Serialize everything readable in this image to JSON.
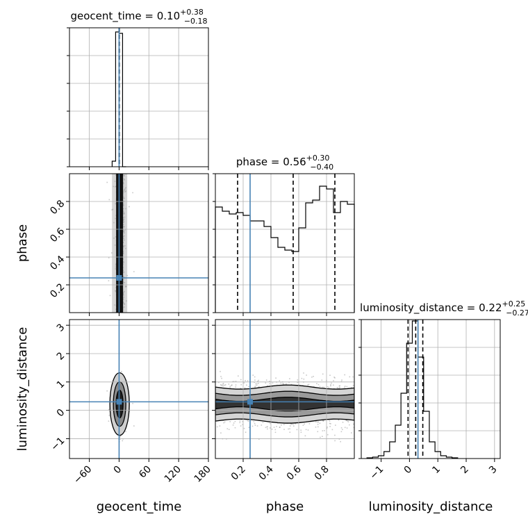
{
  "chart_data": {
    "type": "corner",
    "parameters": [
      "geocent_time",
      "phase",
      "luminosity_distance"
    ],
    "truth": {
      "geocent_time": 0,
      "phase": 0.25,
      "luminosity_distance": 0.3
    },
    "truth_color": "#4682b4",
    "axes": {
      "geocent_time": {
        "range": [
          -100,
          180
        ],
        "ticks": [
          -60,
          0,
          60,
          120,
          180
        ],
        "tick_labels": [
          "−60",
          "0",
          "60",
          "120",
          "180"
        ]
      },
      "phase": {
        "range": [
          0.0,
          1.0
        ],
        "ticks": [
          0.2,
          0.4,
          0.6,
          0.8
        ],
        "tick_labels": [
          "0.2",
          "0.4",
          "0.6",
          "0.8"
        ]
      },
      "luminosity_distance": {
        "range": [
          -1.7,
          3.2
        ],
        "ticks": [
          -1,
          0,
          1,
          2,
          3
        ],
        "tick_labels": [
          "−1",
          "0",
          "1",
          "2",
          "3"
        ]
      }
    },
    "titles": [
      {
        "param": "geocent_time",
        "prefix": "geocent_time = ",
        "median": "0.10",
        "plus": "+0.38",
        "minus": "−0.18"
      },
      {
        "param": "phase",
        "prefix": "phase = ",
        "median": "0.56",
        "plus": "+0.30",
        "minus": "−0.40"
      },
      {
        "param": "luminosity_distance",
        "prefix": "luminosity_distance = ",
        "median": "0.22",
        "plus": "+0.25",
        "minus": "−0.27"
      }
    ],
    "quantiles": {
      "geocent_time": [
        -0.08,
        0.1,
        0.48
      ],
      "phase": [
        0.16,
        0.56,
        0.86
      ],
      "luminosity_distance": [
        -0.05,
        0.22,
        0.47
      ]
    },
    "histograms": {
      "geocent_time": {
        "edges": [
          -14,
          -7,
          0,
          7,
          14
        ],
        "counts": [
          0.04,
          0.97,
          0.96,
          0
        ]
      },
      "phase": {
        "edges": [
          0.0,
          0.05,
          0.1,
          0.15,
          0.2,
          0.25,
          0.3,
          0.35,
          0.4,
          0.45,
          0.5,
          0.55,
          0.6,
          0.65,
          0.7,
          0.75,
          0.8,
          0.85,
          0.9,
          0.95,
          1.0
        ],
        "counts": [
          0.76,
          0.73,
          0.71,
          0.72,
          0.7,
          0.66,
          0.66,
          0.62,
          0.54,
          0.47,
          0.45,
          0.44,
          0.61,
          0.79,
          0.81,
          0.91,
          0.89,
          0.72,
          0.8,
          0.78
        ]
      },
      "luminosity_distance": {
        "edges": [
          -1.5,
          -1.3,
          -1.1,
          -0.9,
          -0.7,
          -0.5,
          -0.3,
          -0.1,
          0.1,
          0.3,
          0.5,
          0.7,
          0.9,
          1.1,
          1.3,
          1.5,
          1.7
        ],
        "counts": [
          0.005,
          0.01,
          0.02,
          0.05,
          0.12,
          0.24,
          0.47,
          0.83,
          0.99,
          0.73,
          0.34,
          0.12,
          0.05,
          0.02,
          0.01,
          0.005
        ]
      }
    },
    "grid": true
  }
}
